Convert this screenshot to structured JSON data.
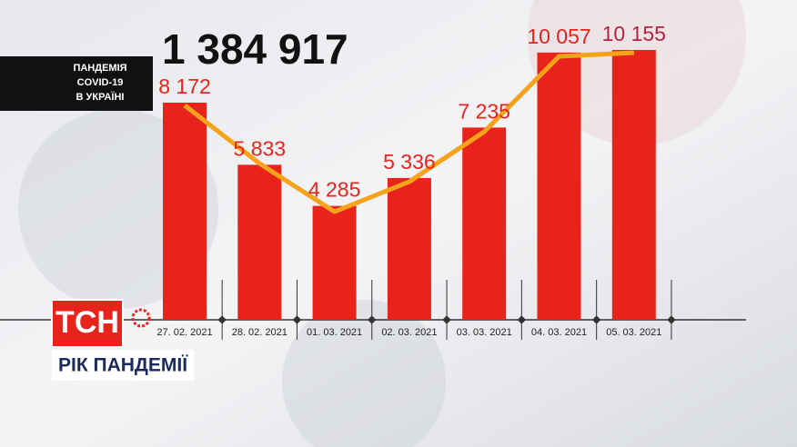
{
  "chart_data": {
    "type": "bar",
    "title": "1 384 917",
    "caption": [
      "ПАНДЕМІЯ",
      "COVID-19",
      "В УКРАЇНІ"
    ],
    "logo": "ТСН",
    "banner": "РІК ПАНДЕМІЇ",
    "categories": [
      "27. 02. 2021",
      "28. 02. 2021",
      "01. 03. 2021",
      "02. 03. 2021",
      "03. 03. 2021",
      "04. 03. 2021",
      "05. 03. 2021"
    ],
    "values": [
      8172,
      5833,
      4285,
      5336,
      7235,
      10057,
      10155
    ],
    "value_labels": [
      "8 172",
      "5 833",
      "4 285",
      "5 336",
      "7 235",
      "10 057",
      "10 155"
    ],
    "label_colors": [
      "#e8231b",
      "#e8231b",
      "#e8231b",
      "#e8231b",
      "#e8231b",
      "#e8231b",
      "#b5234a"
    ],
    "color": "#e8231b",
    "line_values": [
      8068,
      5880,
      4068,
      5197,
      7077,
      9915,
      10051
    ],
    "line_color": "#f7a21b"
  }
}
